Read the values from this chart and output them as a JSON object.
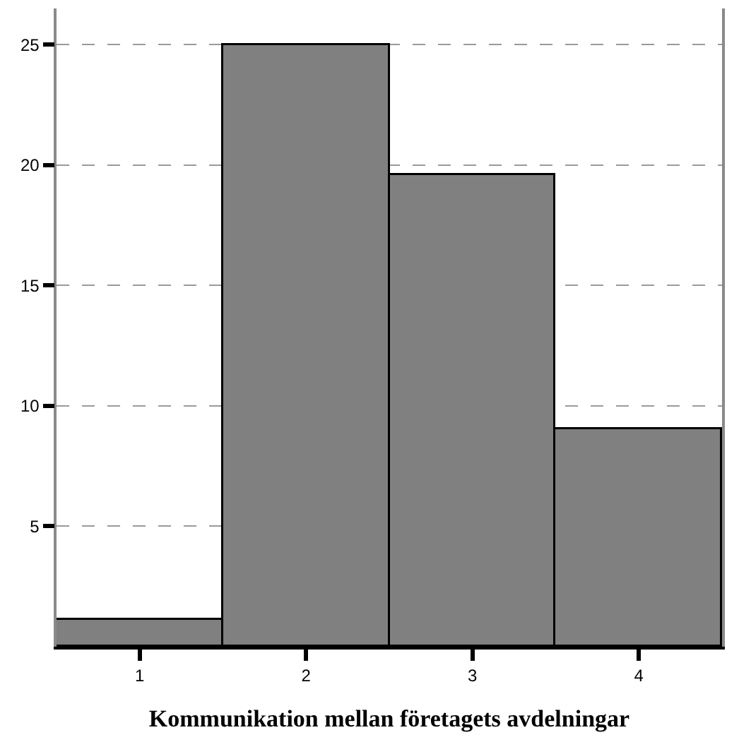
{
  "chart_data": {
    "type": "bar",
    "xlabel": "Kommunikation mellan företagets avdelningar",
    "categories": [
      "1",
      "2",
      "3",
      "4"
    ],
    "values": [
      1.1,
      25,
      19.6,
      9.0
    ],
    "color": "#808080",
    "ylim": [
      0,
      26.5
    ],
    "yticks": [
      5,
      10,
      15,
      20,
      25
    ],
    "grid": "y"
  }
}
